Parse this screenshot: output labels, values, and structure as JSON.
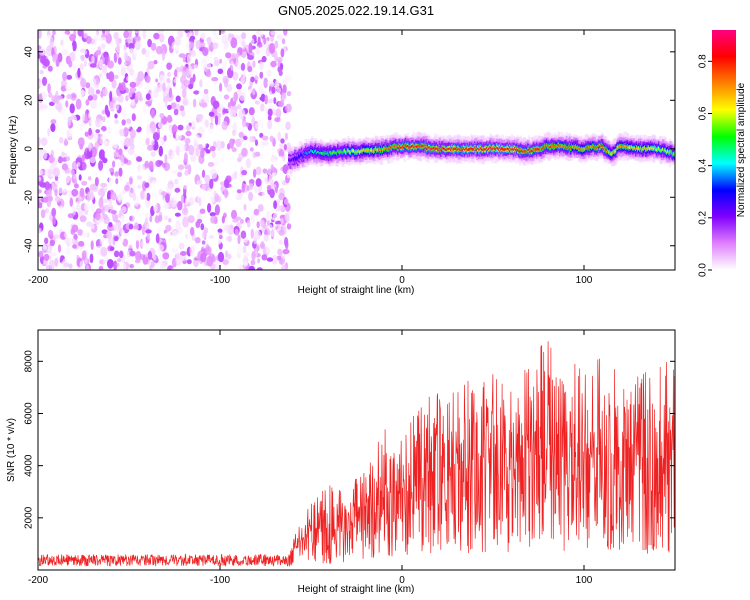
{
  "title": "GN05.2025.022.19.14.G31",
  "chart_data": [
    {
      "type": "heatmap",
      "xlabel": "Height of straight line (km)",
      "ylabel": "Frequency (Hz)",
      "xlim": [
        -200,
        150
      ],
      "ylim": [
        -50,
        49
      ],
      "xticks": [
        -200,
        -100,
        0,
        100
      ],
      "yticks": [
        -40,
        -20,
        0,
        20,
        40
      ],
      "colorbar": {
        "label": "Normalized spectral amplitude",
        "range": [
          0,
          0.92
        ],
        "ticks": [
          0.0,
          0.2,
          0.4,
          0.6,
          0.8
        ],
        "tick_labels": [
          "0.0",
          "0.2",
          "0.4",
          "0.6",
          "0.8"
        ],
        "colormap": [
          "#ffffff",
          "#e080ff",
          "#8000ff",
          "#0000ff",
          "#00ffff",
          "#00ff00",
          "#ffff00",
          "#ff8000",
          "#ff0000",
          "#ff0080"
        ]
      },
      "noise_region": {
        "x_start": -200,
        "x_end": -62,
        "freq_min": -50,
        "freq_max": 49,
        "amplitude_range": [
          0.0,
          0.15
        ]
      },
      "signal_band": {
        "x": [
          -62,
          -55,
          -50,
          -40,
          -30,
          -20,
          -10,
          0,
          10,
          20,
          30,
          40,
          50,
          60,
          70,
          80,
          90,
          100,
          110,
          115,
          120,
          130,
          140,
          150
        ],
        "freq": [
          -5,
          -3,
          -1,
          -2,
          -1,
          -1,
          0,
          1,
          1,
          0,
          0,
          0,
          0,
          0,
          -1,
          1,
          1,
          0,
          1,
          -2,
          1,
          0,
          0,
          -2
        ],
        "peak_amplitude": [
          0.25,
          0.35,
          0.45,
          0.55,
          0.6,
          0.7,
          0.75,
          0.85,
          0.85,
          0.88,
          0.9,
          0.9,
          0.92,
          0.9,
          0.85,
          0.8,
          0.8,
          0.75,
          0.85,
          0.7,
          0.75,
          0.7,
          0.65,
          0.6
        ]
      }
    },
    {
      "type": "line",
      "xlabel": "Height of straight line (km)",
      "ylabel": "SNR (10 * v/v)",
      "xlim": [
        -200,
        150
      ],
      "ylim": [
        0,
        9200
      ],
      "xticks": [
        -200,
        -100,
        0,
        100
      ],
      "yticks": [
        2000,
        4000,
        6000,
        8000
      ],
      "series": [
        {
          "color": "#ee2222",
          "envelope": {
            "x": [
              -200,
              -150,
              -100,
              -62,
              -58,
              -50,
              -40,
              -30,
              -20,
              -10,
              0,
              10,
              20,
              30,
              40,
              50,
              60,
              70,
              80,
              90,
              100,
              110,
              120,
              130,
              140,
              150
            ],
            "mean": [
              350,
              350,
              350,
              350,
              900,
              1400,
              1500,
              1700,
              2300,
              2800,
              3100,
              3400,
              3600,
              4000,
              4300,
              4300,
              4200,
              4300,
              4400,
              4300,
              4300,
              4300,
              4300,
              4200,
              4000,
              4300
            ],
            "max": [
              700,
              700,
              700,
              700,
              1500,
              2600,
              3300,
              3000,
              4300,
              5500,
              6000,
              6300,
              7000,
              6800,
              7600,
              7700,
              7500,
              8100,
              9100,
              8500,
              7600,
              8300,
              7800,
              7500,
              8200,
              8600
            ]
          }
        }
      ]
    }
  ]
}
